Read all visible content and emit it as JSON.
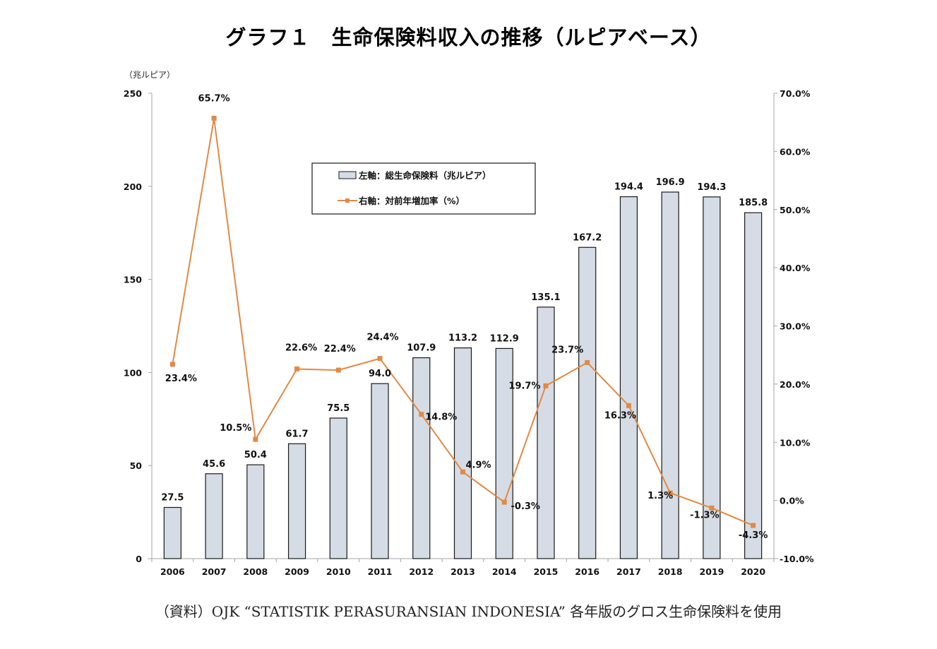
{
  "title": "グラフ１　生命保険料収入の推移（ルピアベース）",
  "unit_label": "（兆ルピア）",
  "source_note": "（資料）OJK “STATISTIK PERASURANSIAN INDONESIA” 各年版のグロス生命保険料を使用",
  "colors": {
    "bar_fill": "#d6dce5",
    "bar_stroke": "#1a1a1a",
    "line": "#e08a45",
    "axis": "#a6a6a6"
  },
  "chart_data": {
    "type": "bar+line",
    "title": "グラフ１　生命保険料収入の推移（ルピアベース）",
    "categories": [
      "2006",
      "2007",
      "2008",
      "2009",
      "2010",
      "2011",
      "2012",
      "2013",
      "2014",
      "2015",
      "2016",
      "2017",
      "2018",
      "2019",
      "2020"
    ],
    "series": [
      {
        "name": "左軸：総生命保険料（兆ルピア）",
        "type": "bar",
        "axis": "left",
        "values": [
          27.5,
          45.6,
          50.4,
          61.7,
          75.5,
          94.0,
          107.9,
          113.2,
          112.9,
          135.1,
          167.2,
          194.4,
          196.9,
          194.3,
          185.8
        ],
        "labels": [
          "27.5",
          "45.6",
          "50.4",
          "61.7",
          "75.5",
          "94.0",
          "107.9",
          "113.2",
          "112.9",
          "135.1",
          "167.2",
          "194.4",
          "196.9",
          "194.3",
          "185.8"
        ]
      },
      {
        "name": "右軸：対前年増加率（%）",
        "type": "line",
        "axis": "right",
        "values": [
          23.4,
          65.7,
          10.5,
          22.6,
          22.4,
          24.4,
          14.8,
          4.9,
          -0.3,
          19.7,
          23.7,
          16.3,
          1.3,
          -1.3,
          -4.3
        ],
        "labels": [
          "23.4%",
          "65.7%",
          "10.5%",
          "22.6%",
          "22.4%",
          "24.4%",
          "14.8%",
          "4.9%",
          "-0.3%",
          "19.7%",
          "23.7%",
          "16.3%",
          "1.3%",
          "-1.3%",
          "-4.3%"
        ]
      }
    ],
    "left_axis": {
      "label": "（兆ルピア）",
      "range": [
        0,
        250
      ],
      "ticks": [
        0,
        50,
        100,
        150,
        200,
        250
      ],
      "tick_labels": [
        "0",
        "50",
        "100",
        "150",
        "200",
        "250"
      ]
    },
    "right_axis": {
      "range": [
        -10,
        70
      ],
      "ticks": [
        -10,
        0,
        10,
        20,
        30,
        40,
        50,
        60,
        70
      ],
      "tick_labels": [
        "-10.0%",
        "0.0%",
        "10.0%",
        "20.0%",
        "30.0%",
        "40.0%",
        "50.0%",
        "60.0%",
        "70.0%"
      ]
    },
    "grid": false,
    "legend": {
      "position": "top-center",
      "entries": [
        "左軸：総生命保険料（兆ルピア）",
        "右軸：対前年増加率（%）"
      ]
    }
  }
}
